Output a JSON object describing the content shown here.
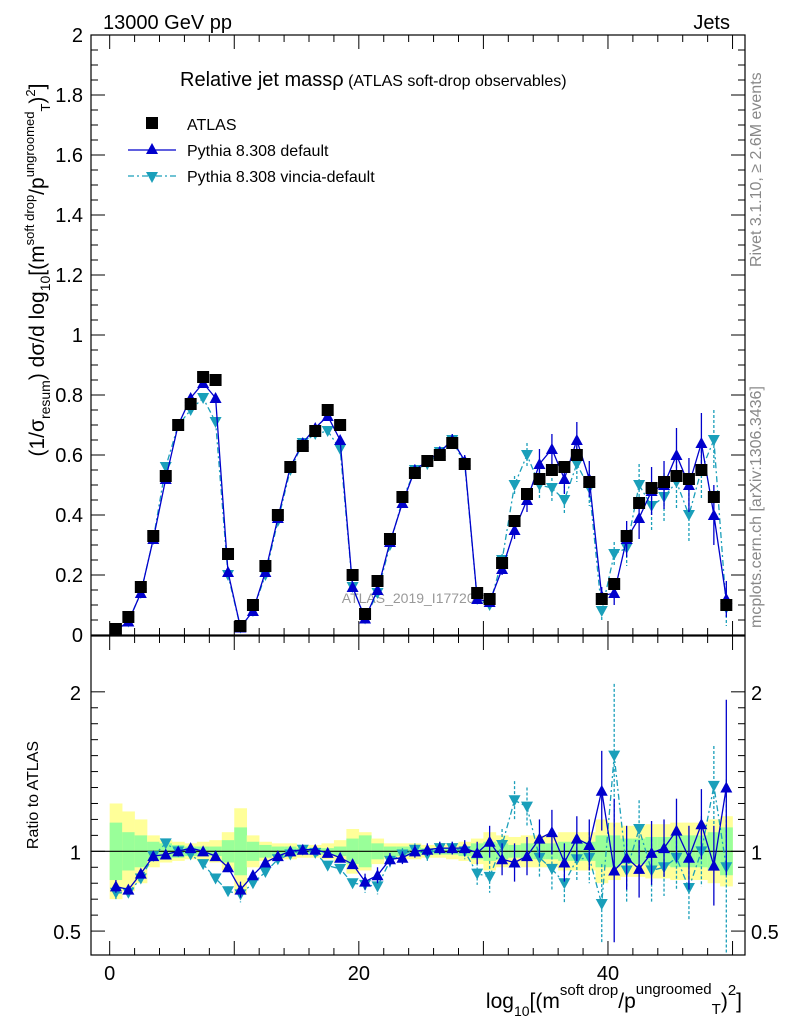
{
  "header": {
    "left": "13000 GeV pp",
    "right": "Jets"
  },
  "side": {
    "rivet": "Rivet 3.1.10, ≥ 2.6M events",
    "mcplots": "mcplots.cern.ch [arXiv:1306.3436]"
  },
  "watermark": "ATLAS_2019_I1772062",
  "legend_title": {
    "main": "Relative jet massρ",
    "sub": " (ATLAS soft-drop observables)"
  },
  "colors": {
    "data": "#000000",
    "default": "#0000cc",
    "vincia": "#1a9fba",
    "band_inner": "#99ff99",
    "band_outer": "#ffff99"
  },
  "chart_data": [
    {
      "type": "scatter",
      "panel": "main",
      "ylabel": "(1/σresum) dσ/d log10[(m soft drop/pT ungroomed)2]",
      "ylim": [
        0,
        2
      ],
      "yticks": [
        "0",
        "0.2",
        "0.4",
        "0.6",
        "0.8",
        "1",
        "1.2",
        "1.4",
        "1.6",
        "1.8",
        "2"
      ],
      "xlim": [
        -1.5,
        51
      ],
      "legend_position": "top-left",
      "series": [
        {
          "name": "ATLAS",
          "x": [
            0.5,
            1.5,
            2.5,
            3.5,
            4.5,
            5.5,
            6.5,
            7.5,
            8.5,
            9.5,
            10.5,
            11.5,
            12.5,
            13.5,
            14.5,
            15.5,
            16.5,
            17.5,
            18.5,
            19.5,
            20.5,
            21.5,
            22.5,
            23.5,
            24.5,
            25.5,
            26.5,
            27.5,
            28.5,
            29.5,
            30.5,
            31.5,
            32.5,
            33.5,
            34.5,
            35.5,
            36.5,
            37.5,
            38.5,
            39.5,
            40.5,
            41.5,
            42.5,
            43.5,
            44.5,
            45.5,
            46.5,
            47.5,
            48.5,
            49.5
          ],
          "y": [
            0.02,
            0.06,
            0.16,
            0.33,
            0.53,
            0.7,
            0.77,
            0.86,
            0.85,
            0.27,
            0.03,
            0.1,
            0.23,
            0.4,
            0.56,
            0.63,
            0.68,
            0.75,
            0.7,
            0.2,
            0.07,
            0.18,
            0.32,
            0.46,
            0.54,
            0.58,
            0.6,
            0.64,
            0.57,
            0.14,
            0.12,
            0.24,
            0.38,
            0.47,
            0.52,
            0.55,
            0.56,
            0.6,
            0.51,
            0.12,
            0.17,
            0.33,
            0.44,
            0.49,
            0.51,
            0.53,
            0.52,
            0.55,
            0.46,
            0.1
          ]
        },
        {
          "name": "Pythia 8.308 default",
          "x": [
            0.5,
            1.5,
            2.5,
            3.5,
            4.5,
            5.5,
            6.5,
            7.5,
            8.5,
            9.5,
            10.5,
            11.5,
            12.5,
            13.5,
            14.5,
            15.5,
            16.5,
            17.5,
            18.5,
            19.5,
            20.5,
            21.5,
            22.5,
            23.5,
            24.5,
            25.5,
            26.5,
            27.5,
            28.5,
            29.5,
            30.5,
            31.5,
            32.5,
            33.5,
            34.5,
            35.5,
            36.5,
            37.5,
            38.5,
            39.5,
            40.5,
            41.5,
            42.5,
            43.5,
            44.5,
            45.5,
            46.5,
            47.5,
            48.5,
            49.5
          ],
          "y": [
            0.015,
            0.045,
            0.14,
            0.32,
            0.52,
            0.7,
            0.79,
            0.84,
            0.79,
            0.21,
            0.025,
            0.08,
            0.21,
            0.39,
            0.56,
            0.64,
            0.69,
            0.73,
            0.65,
            0.16,
            0.055,
            0.15,
            0.31,
            0.44,
            0.55,
            0.58,
            0.61,
            0.65,
            0.58,
            0.12,
            0.11,
            0.22,
            0.35,
            0.45,
            0.57,
            0.62,
            0.52,
            0.65,
            0.52,
            0.13,
            0.14,
            0.32,
            0.39,
            0.48,
            0.5,
            0.6,
            0.5,
            0.64,
            0.4,
            0.12
          ],
          "yerr": [
            0.003,
            0.005,
            0.008,
            0.01,
            0.012,
            0.014,
            0.015,
            0.016,
            0.016,
            0.01,
            0.004,
            0.006,
            0.01,
            0.012,
            0.014,
            0.015,
            0.015,
            0.016,
            0.015,
            0.009,
            0.006,
            0.01,
            0.013,
            0.016,
            0.018,
            0.018,
            0.018,
            0.02,
            0.02,
            0.012,
            0.015,
            0.02,
            0.03,
            0.04,
            0.05,
            0.05,
            0.05,
            0.06,
            0.06,
            0.03,
            0.04,
            0.06,
            0.07,
            0.08,
            0.08,
            0.09,
            0.09,
            0.1,
            0.1,
            0.06
          ]
        },
        {
          "name": "Pythia 8.308 vincia-default",
          "x": [
            0.5,
            1.5,
            2.5,
            3.5,
            4.5,
            5.5,
            6.5,
            7.5,
            8.5,
            9.5,
            10.5,
            11.5,
            12.5,
            13.5,
            14.5,
            15.5,
            16.5,
            17.5,
            18.5,
            19.5,
            20.5,
            21.5,
            22.5,
            23.5,
            24.5,
            25.5,
            26.5,
            27.5,
            28.5,
            29.5,
            30.5,
            31.5,
            32.5,
            33.5,
            34.5,
            35.5,
            36.5,
            37.5,
            38.5,
            39.5,
            40.5,
            41.5,
            42.5,
            43.5,
            44.5,
            45.5,
            46.5,
            47.5,
            48.5,
            49.5
          ],
          "y": [
            0.015,
            0.045,
            0.14,
            0.32,
            0.56,
            0.7,
            0.75,
            0.79,
            0.71,
            0.2,
            0.025,
            0.08,
            0.2,
            0.38,
            0.55,
            0.64,
            0.67,
            0.68,
            0.62,
            0.16,
            0.055,
            0.14,
            0.3,
            0.45,
            0.55,
            0.57,
            0.61,
            0.65,
            0.57,
            0.12,
            0.1,
            0.25,
            0.5,
            0.6,
            0.5,
            0.49,
            0.45,
            0.57,
            0.49,
            0.08,
            0.27,
            0.29,
            0.5,
            0.43,
            0.46,
            0.51,
            0.4,
            0.55,
            0.65,
            0.09
          ],
          "yerr": [
            0.003,
            0.005,
            0.008,
            0.01,
            0.012,
            0.014,
            0.015,
            0.016,
            0.016,
            0.01,
            0.004,
            0.006,
            0.01,
            0.012,
            0.014,
            0.015,
            0.015,
            0.016,
            0.015,
            0.009,
            0.006,
            0.01,
            0.013,
            0.016,
            0.018,
            0.018,
            0.018,
            0.02,
            0.02,
            0.012,
            0.015,
            0.02,
            0.03,
            0.04,
            0.05,
            0.05,
            0.05,
            0.06,
            0.06,
            0.03,
            0.04,
            0.06,
            0.07,
            0.08,
            0.08,
            0.09,
            0.09,
            0.1,
            0.1,
            0.06
          ]
        }
      ]
    },
    {
      "type": "scatter",
      "panel": "ratio",
      "ylabel": "Ratio to ATLAS",
      "ylim": [
        0.35,
        2.35
      ],
      "yticks": [
        "0.5",
        "1",
        "2"
      ],
      "xlabel": "log10[(m soft drop/pT ungroomed)2]",
      "xlim": [
        -1.5,
        51
      ],
      "xticks": [
        "0",
        "20",
        "40"
      ],
      "reference": 1,
      "band_inner_halfwidth": [
        0.18,
        0.12,
        0.1,
        0.06,
        0.05,
        0.04,
        0.03,
        0.03,
        0.03,
        0.07,
        0.15,
        0.06,
        0.04,
        0.03,
        0.03,
        0.02,
        0.02,
        0.02,
        0.03,
        0.08,
        0.1,
        0.05,
        0.03,
        0.03,
        0.03,
        0.02,
        0.02,
        0.02,
        0.03,
        0.05,
        0.06,
        0.05,
        0.04,
        0.05,
        0.05,
        0.05,
        0.06,
        0.06,
        0.06,
        0.1,
        0.1,
        0.08,
        0.08,
        0.09,
        0.09,
        0.1,
        0.1,
        0.1,
        0.12,
        0.15
      ],
      "band_outer_halfwidth": [
        0.3,
        0.25,
        0.2,
        0.1,
        0.07,
        0.06,
        0.05,
        0.06,
        0.07,
        0.12,
        0.27,
        0.1,
        0.06,
        0.05,
        0.05,
        0.04,
        0.04,
        0.05,
        0.07,
        0.14,
        0.12,
        0.08,
        0.05,
        0.05,
        0.05,
        0.04,
        0.04,
        0.05,
        0.06,
        0.08,
        0.12,
        0.1,
        0.09,
        0.1,
        0.1,
        0.1,
        0.12,
        0.12,
        0.12,
        0.2,
        0.18,
        0.16,
        0.16,
        0.17,
        0.17,
        0.18,
        0.18,
        0.18,
        0.2,
        0.22
      ],
      "series": [
        {
          "name": "Pythia 8.308 default",
          "x": [
            0.5,
            1.5,
            2.5,
            3.5,
            4.5,
            5.5,
            6.5,
            7.5,
            8.5,
            9.5,
            10.5,
            11.5,
            12.5,
            13.5,
            14.5,
            15.5,
            16.5,
            17.5,
            18.5,
            19.5,
            20.5,
            21.5,
            22.5,
            23.5,
            24.5,
            25.5,
            26.5,
            27.5,
            28.5,
            29.5,
            30.5,
            31.5,
            32.5,
            33.5,
            34.5,
            35.5,
            36.5,
            37.5,
            38.5,
            39.5,
            40.5,
            41.5,
            42.5,
            43.5,
            44.5,
            45.5,
            46.5,
            47.5,
            48.5,
            49.5
          ],
          "y": [
            0.78,
            0.76,
            0.86,
            0.97,
            0.98,
            1.0,
            1.02,
            1.0,
            0.97,
            0.9,
            0.76,
            0.85,
            0.93,
            0.97,
            1.0,
            1.01,
            1.01,
            0.99,
            0.96,
            0.92,
            0.81,
            0.85,
            0.95,
            0.96,
            1.0,
            1.01,
            1.02,
            1.02,
            1.02,
            0.99,
            1.06,
            0.95,
            0.93,
            0.97,
            1.08,
            1.12,
            0.93,
            1.08,
            1.04,
            1.38,
            0.88,
            0.96,
            0.89,
            0.99,
            1.02,
            1.13,
            0.96,
            1.17,
            0.91,
            1.4
          ],
          "yerr": [
            0.04,
            0.03,
            0.02,
            0.02,
            0.02,
            0.02,
            0.02,
            0.02,
            0.02,
            0.03,
            0.05,
            0.03,
            0.02,
            0.02,
            0.02,
            0.02,
            0.02,
            0.02,
            0.02,
            0.03,
            0.05,
            0.05,
            0.04,
            0.04,
            0.04,
            0.04,
            0.04,
            0.04,
            0.05,
            0.07,
            0.1,
            0.1,
            0.12,
            0.12,
            0.12,
            0.14,
            0.12,
            0.14,
            0.16,
            0.25,
            0.45,
            0.2,
            0.18,
            0.2,
            0.18,
            0.2,
            0.2,
            0.22,
            0.25,
            0.55
          ]
        },
        {
          "name": "Pythia 8.308 vincia-default",
          "x": [
            0.5,
            1.5,
            2.5,
            3.5,
            4.5,
            5.5,
            6.5,
            7.5,
            8.5,
            9.5,
            10.5,
            11.5,
            12.5,
            13.5,
            14.5,
            15.5,
            16.5,
            17.5,
            18.5,
            19.5,
            20.5,
            21.5,
            22.5,
            23.5,
            24.5,
            25.5,
            26.5,
            27.5,
            28.5,
            29.5,
            30.5,
            31.5,
            32.5,
            33.5,
            34.5,
            35.5,
            36.5,
            37.5,
            38.5,
            39.5,
            40.5,
            41.5,
            42.5,
            43.5,
            44.5,
            45.5,
            46.5,
            47.5,
            48.5,
            49.5
          ],
          "y": [
            0.74,
            0.74,
            0.83,
            0.97,
            1.05,
            1.0,
            0.98,
            0.92,
            0.83,
            0.75,
            0.73,
            0.8,
            0.87,
            0.95,
            0.98,
            1.01,
            0.99,
            0.91,
            0.89,
            0.8,
            0.79,
            0.78,
            0.94,
            0.98,
            1.01,
            0.98,
            1.02,
            1.02,
            1.0,
            0.86,
            0.84,
            1.04,
            1.32,
            1.28,
            0.96,
            0.89,
            0.8,
            0.95,
            0.96,
            0.67,
            1.6,
            0.88,
            1.14,
            0.88,
            0.9,
            0.96,
            0.77,
            1.0,
            1.41,
            0.9
          ],
          "yerr": [
            0.04,
            0.03,
            0.02,
            0.02,
            0.02,
            0.02,
            0.02,
            0.02,
            0.02,
            0.03,
            0.05,
            0.03,
            0.02,
            0.02,
            0.02,
            0.02,
            0.02,
            0.02,
            0.02,
            0.03,
            0.05,
            0.05,
            0.04,
            0.04,
            0.04,
            0.04,
            0.04,
            0.04,
            0.05,
            0.07,
            0.1,
            0.1,
            0.12,
            0.12,
            0.12,
            0.14,
            0.12,
            0.14,
            0.16,
            0.25,
            0.45,
            0.2,
            0.18,
            0.2,
            0.18,
            0.2,
            0.2,
            0.22,
            0.25,
            0.55
          ]
        }
      ]
    }
  ]
}
